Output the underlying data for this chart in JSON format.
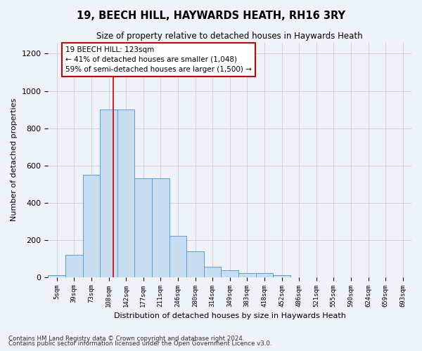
{
  "title1": "19, BEECH HILL, HAYWARDS HEATH, RH16 3RY",
  "title2": "Size of property relative to detached houses in Haywards Heath",
  "xlabel": "Distribution of detached houses by size in Haywards Heath",
  "ylabel": "Number of detached properties",
  "bar_values": [
    10,
    120,
    550,
    900,
    900,
    530,
    530,
    220,
    140,
    55,
    35,
    20,
    20,
    10,
    0,
    0,
    0,
    0,
    0,
    0,
    0
  ],
  "bar_labels": [
    "5sqm",
    "39sqm",
    "73sqm",
    "108sqm",
    "142sqm",
    "177sqm",
    "211sqm",
    "246sqm",
    "280sqm",
    "314sqm",
    "349sqm",
    "383sqm",
    "418sqm",
    "452sqm",
    "486sqm",
    "521sqm",
    "555sqm",
    "590sqm",
    "624sqm",
    "659sqm",
    "693sqm"
  ],
  "bar_color": "#c9ddf0",
  "bar_edge_color": "#5b9bd5",
  "grid_color": "#cccccc",
  "annotation_text": "19 BEECH HILL: 123sqm\n← 41% of detached houses are smaller (1,048)\n59% of semi-detached houses are larger (1,500) →",
  "annotation_box_color": "#ffffff",
  "annotation_box_edge": "#cc0000",
  "vline_color": "#cc0000",
  "vline_x_index": 3.28,
  "ylim": [
    0,
    1260
  ],
  "yticks": [
    0,
    200,
    400,
    600,
    800,
    1000,
    1200
  ],
  "footnote1": "Contains HM Land Registry data © Crown copyright and database right 2024.",
  "footnote2": "Contains public sector information licensed under the Open Government Licence v3.0.",
  "bg_color": "#eef2f9"
}
